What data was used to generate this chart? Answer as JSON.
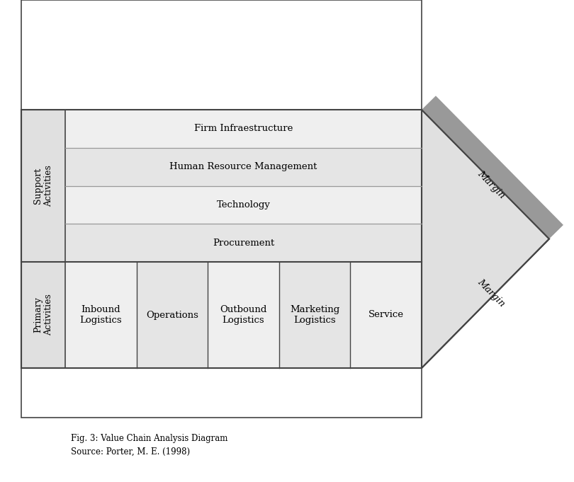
{
  "background_color": "#ffffff",
  "fig_width": 8.1,
  "fig_height": 6.81,
  "title_line1": "Fig. 3: Value Chain Analysis Diagram",
  "title_line2": "Source: Porter, M. E. (1998)",
  "support_activities_label": "Support\nActivities",
  "primary_activities_label": "Primary\nActivities",
  "support_rows": [
    "Firm Infraestructure",
    "Human Resource Management",
    "Technology",
    "Procurement"
  ],
  "primary_cols": [
    "Inbound\nLogistics",
    "Operations",
    "Outbound\nLogistics",
    "Marketing\nLogistics",
    "Service"
  ],
  "margin_label": "Margin",
  "cell_light": "#ebebeb",
  "cell_mid": "#e2e2e2",
  "border_color": "#444444",
  "line_color": "#999999",
  "text_color": "#000000",
  "arrow_light": "#e0e0e0",
  "arrow_mid": "#c0c0c0",
  "arrow_dark": "#999999"
}
